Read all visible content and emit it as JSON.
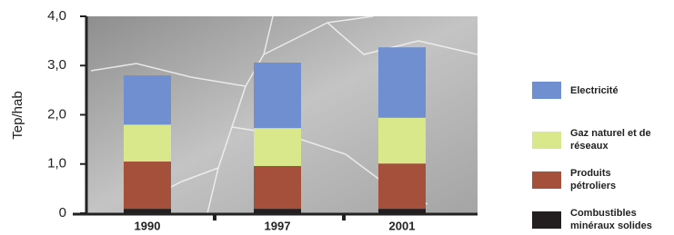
{
  "chart_data": {
    "type": "stacked-bar",
    "y_label": "Tep/hab",
    "categories": [
      "1990",
      "1997",
      "2001"
    ],
    "series": [
      {
        "name": "Combustibles minéraux solides",
        "color": "#231f20",
        "values": [
          0.09,
          0.09,
          0.09
        ]
      },
      {
        "name": "Produits pétroliers",
        "color": "#a5503a",
        "values": [
          0.96,
          0.87,
          0.92
        ]
      },
      {
        "name": "Gaz naturel et de réseaux",
        "color": "#d8e88a",
        "values": [
          0.75,
          0.77,
          0.93
        ]
      },
      {
        "name": "Electricité",
        "color": "#6f8fd0",
        "values": [
          1.0,
          1.33,
          1.43
        ]
      }
    ],
    "ylim": [
      0,
      4
    ],
    "yticks": [
      0,
      {
        "value": 1,
        "label": "1,0"
      },
      {
        "value": 2,
        "label": "2,0"
      },
      {
        "value": 3,
        "label": "3,0"
      },
      {
        "value": 4,
        "label": "4,0"
      }
    ]
  }
}
